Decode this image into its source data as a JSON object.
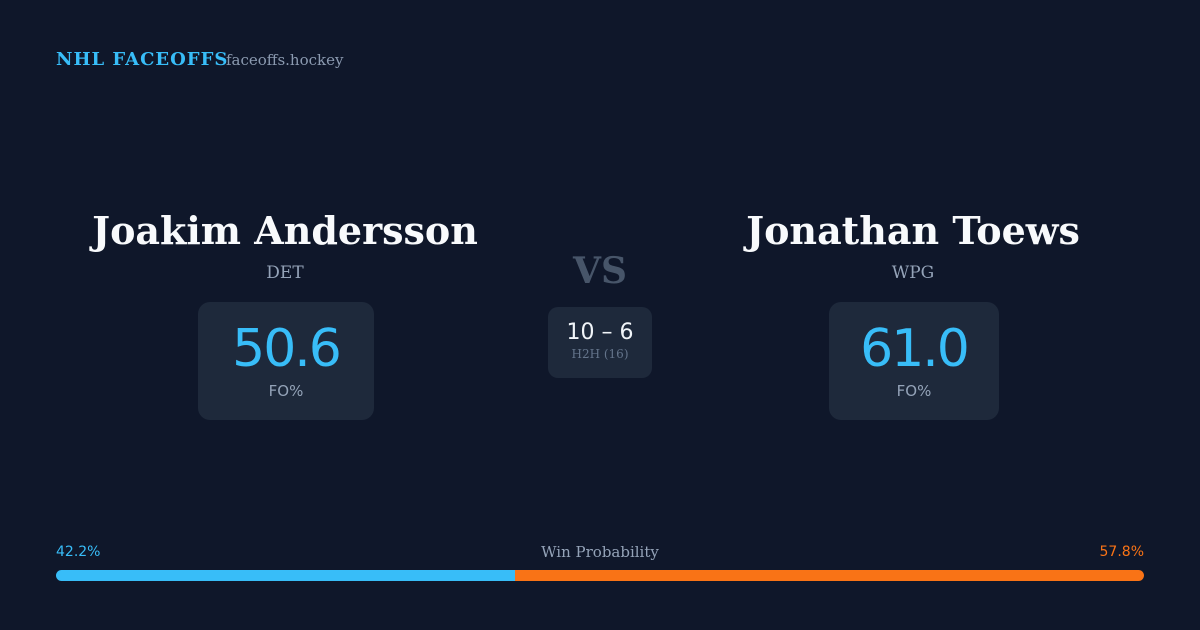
{
  "header": {
    "brand": "NHL FACEOFFS",
    "site": "faceoffs.hockey"
  },
  "left_player": {
    "name": "Joakim Andersson",
    "team": "DET",
    "stat": "50.6",
    "stat_label": "FO%"
  },
  "right_player": {
    "name": "Jonathan Toews",
    "team": "WPG",
    "stat": "61.0",
    "stat_label": "FO%"
  },
  "versus": {
    "label": "VS",
    "h2h": "10 – 6",
    "h2h_label": "H2H (16)"
  },
  "win_probability": {
    "title": "Win Probability",
    "left": {
      "value": 42.2,
      "label": "42.2%",
      "color": "#38bdf8"
    },
    "right": {
      "value": 57.8,
      "label": "57.8%",
      "color": "#f97316"
    }
  }
}
